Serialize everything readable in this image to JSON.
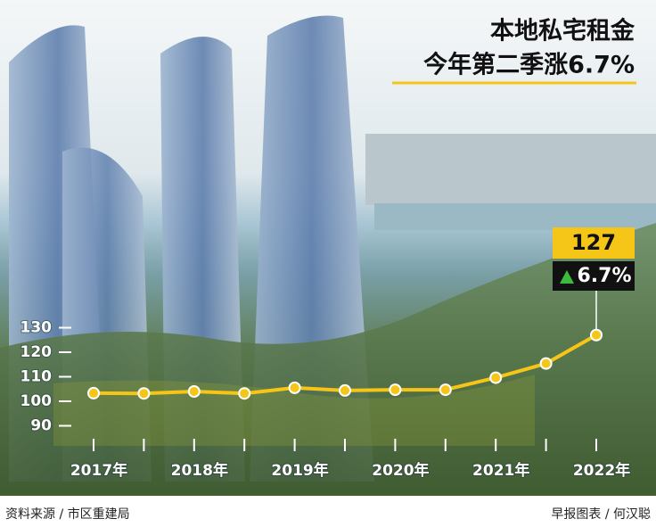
{
  "chart_data": {
    "type": "line",
    "title": "本地私宅租金",
    "subtitle": "今年第二季涨6.7%",
    "categories": [
      "2017年",
      null,
      "2018年",
      null,
      "2019年",
      null,
      "2020年",
      null,
      "2021年",
      null,
      "2022年"
    ],
    "values": [
      103.3,
      103.2,
      104,
      103.2,
      105.5,
      104.4,
      104.7,
      104.7,
      109.6,
      115.4,
      127
    ],
    "color": "#f5c518",
    "ylim": [
      86,
      132
    ],
    "yticks": [
      90,
      100,
      110,
      120,
      130
    ],
    "annotations": {
      "value": "127",
      "change": "6.7%"
    },
    "source": "资料来源 / 市区重建局",
    "credit": "早报图表 / 何汉聪"
  }
}
